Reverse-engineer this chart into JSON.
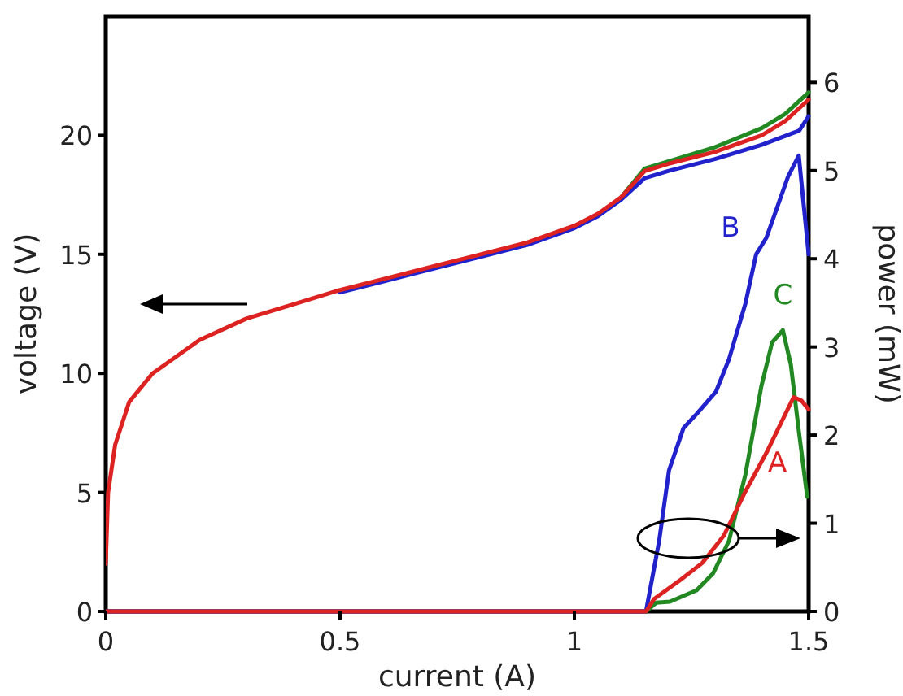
{
  "chart_data": {
    "type": "line",
    "xlabel": "current (A)",
    "ylabel": "voltage (V)",
    "y2label": "power (mW)",
    "xlim": [
      0,
      1.5
    ],
    "xticks": [
      0,
      0.5,
      1,
      1.5
    ],
    "ylim": [
      0,
      25
    ],
    "yticks": [
      0,
      5,
      10,
      15,
      20
    ],
    "y2lim": [
      0,
      6.75
    ],
    "y2ticks": [
      0,
      1,
      2,
      3,
      4,
      5,
      6
    ],
    "grid": false,
    "legend": false,
    "marker": "none",
    "line_style": "solid",
    "series": [
      {
        "color": "#2222cc",
        "x": [
          0.5,
          0.6,
          0.7,
          0.8,
          0.9,
          1.0,
          1.05,
          1.1,
          1.15,
          1.2,
          1.3,
          1.4,
          1.48,
          1.5
        ],
        "values": [
          13.4,
          13.9,
          14.4,
          14.9,
          15.4,
          16.1,
          16.6,
          17.3,
          18.2,
          18.5,
          19,
          19.6,
          20.2,
          20.8
        ]
      },
      {
        "color": "#228822",
        "x": [
          1.1,
          1.15,
          1.2,
          1.3,
          1.4,
          1.45,
          1.5
        ],
        "values": [
          17.4,
          18.6,
          18.9,
          19.5,
          20.3,
          20.9,
          21.8
        ]
      },
      {
        "color": "#dd2222",
        "x": [
          0,
          0.005,
          0.02,
          0.05,
          0.1,
          0.2,
          0.3,
          0.4,
          0.5,
          0.6,
          0.7,
          0.8,
          0.9,
          1.0,
          1.05,
          1.1,
          1.15,
          1.2,
          1.3,
          1.4,
          1.45,
          1.5
        ],
        "values": [
          2,
          5,
          7,
          8.8,
          10,
          11.4,
          12.3,
          12.9,
          13.5,
          14,
          14.5,
          15,
          15.5,
          16.2,
          16.7,
          17.4,
          18.5,
          18.8,
          19.3,
          20,
          20.6,
          21.5
        ]
      },
      {
        "name": "B",
        "axis": "y2",
        "color": "#2222cc",
        "x": [
          0,
          1.153,
          1.181,
          1.202,
          1.233,
          1.261,
          1.302,
          1.33,
          1.365,
          1.388,
          1.41,
          1.456,
          1.479,
          1.5
        ],
        "values": [
          0,
          0,
          0.8,
          1.6,
          2.08,
          2.24,
          2.49,
          2.86,
          3.49,
          4.05,
          4.24,
          4.93,
          5.17,
          4.05
        ]
      },
      {
        "name": "C",
        "axis": "y2",
        "color": "#228822",
        "x": [
          1.153,
          1.175,
          1.204,
          1.261,
          1.296,
          1.33,
          1.365,
          1.399,
          1.422,
          1.445,
          1.462,
          1.479,
          1.497
        ],
        "values": [
          0,
          0.1,
          0.11,
          0.24,
          0.43,
          0.8,
          1.55,
          2.55,
          3.05,
          3.19,
          2.8,
          2.05,
          1.3
        ]
      },
      {
        "name": "A",
        "axis": "y2",
        "color": "#dd2222",
        "x": [
          0,
          1.153,
          1.17,
          1.227,
          1.273,
          1.319,
          1.365,
          1.41,
          1.445,
          1.468,
          1.485,
          1.5
        ],
        "values": [
          0,
          0,
          0.14,
          0.36,
          0.55,
          0.86,
          1.36,
          1.8,
          2.18,
          2.43,
          2.39,
          2.29
        ]
      }
    ]
  }
}
